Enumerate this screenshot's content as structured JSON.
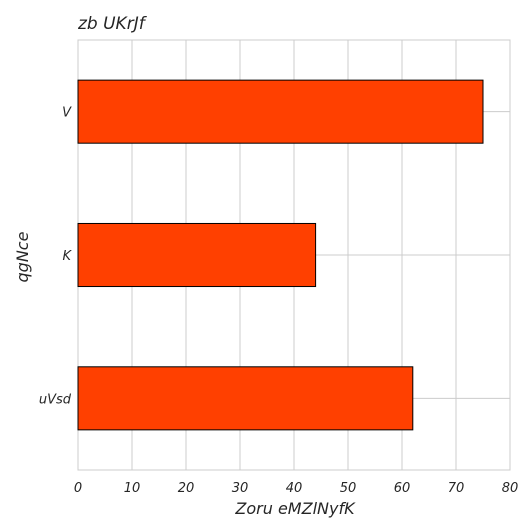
{
  "chart_data": {
    "type": "bar",
    "orientation": "horizontal",
    "title": "zb UKrJf",
    "xlabel": "Zoru eMZlNyfK",
    "ylabel": "qgNce",
    "categories": [
      "V",
      "K",
      "uVsd"
    ],
    "values": [
      75,
      44,
      62
    ],
    "xlim": [
      0,
      80
    ],
    "xticks": [
      0,
      10,
      20,
      30,
      40,
      50,
      60,
      70,
      80
    ],
    "grid": true,
    "bar_color": "#ff4000",
    "edge_color": "#000000"
  }
}
